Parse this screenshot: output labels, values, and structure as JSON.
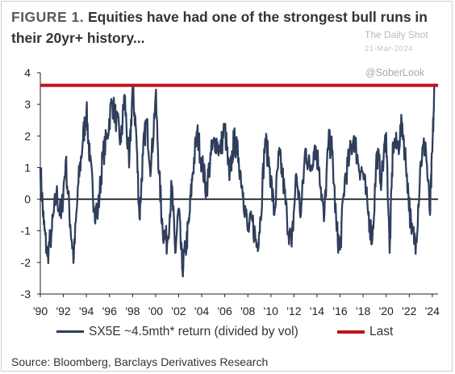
{
  "header": {
    "figure_label": "FIGURE 1.",
    "title": "Equities have had one of the strongest bull runs in their 20yr+ history..."
  },
  "watermarks": {
    "brand": "The Daily Shot",
    "date": "21-Mar-2024",
    "handle": "@SoberLook"
  },
  "source": "Source: Bloomberg, Barclays Derivatives Research",
  "colors": {
    "series": "#2f3e5c",
    "last": "#c0131b",
    "zero_line": "#000000"
  },
  "chart_data": {
    "type": "line",
    "title": "Equities have had one of the strongest bull runs in their 20yr+ history...",
    "xlabel": "",
    "ylabel": "",
    "ylim": [
      -3,
      4
    ],
    "xlim": [
      1990,
      2024.5
    ],
    "yticks": [
      -3,
      -2,
      -1,
      0,
      1,
      2,
      3,
      4
    ],
    "ytick_labels": [
      "-3",
      "-2",
      "-1",
      "0",
      "1",
      "2",
      "3",
      "4"
    ],
    "xticks": [
      1990,
      1992,
      1994,
      1996,
      1998,
      2000,
      2002,
      2004,
      2006,
      2008,
      2010,
      2012,
      2014,
      2016,
      2018,
      2020,
      2022,
      2024
    ],
    "xtick_labels": [
      "'90",
      "'92",
      "'94",
      "'96",
      "'98",
      "'00",
      "'02",
      "'04",
      "'06",
      "'08",
      "'10",
      "'12",
      "'14",
      "'16",
      "'18",
      "'20",
      "'22",
      "'24"
    ],
    "grid": false,
    "legend_position": "bottom",
    "series": [
      {
        "name": "SX5E ~4.5mth* return (divided by vol)",
        "style": "line",
        "x": [
          1990.0,
          1990.3,
          1990.6,
          1991.0,
          1991.4,
          1991.8,
          1992.2,
          1992.6,
          1992.9,
          1993.3,
          1993.7,
          1994.0,
          1994.3,
          1994.7,
          1995.0,
          1995.4,
          1995.8,
          1996.2,
          1996.6,
          1997.0,
          1997.3,
          1997.7,
          1998.0,
          1998.3,
          1998.6,
          1998.9,
          1999.2,
          1999.6,
          2000.0,
          2000.3,
          2000.6,
          2001.0,
          2001.4,
          2001.7,
          2002.0,
          2002.3,
          2002.6,
          2002.9,
          2003.2,
          2003.6,
          2004.0,
          2004.4,
          2004.8,
          2005.2,
          2005.6,
          2006.0,
          2006.4,
          2006.8,
          2007.2,
          2007.6,
          2008.0,
          2008.4,
          2008.8,
          2009.1,
          2009.5,
          2009.9,
          2010.3,
          2010.7,
          2011.0,
          2011.4,
          2011.8,
          2012.2,
          2012.6,
          2013.0,
          2013.4,
          2013.8,
          2014.2,
          2014.6,
          2015.0,
          2015.3,
          2015.7,
          2016.0,
          2016.4,
          2016.8,
          2017.2,
          2017.6,
          2018.0,
          2018.4,
          2018.8,
          2019.2,
          2019.6,
          2020.0,
          2020.3,
          2020.6,
          2021.0,
          2021.4,
          2021.8,
          2022.2,
          2022.6,
          2023.0,
          2023.4,
          2023.8,
          2024.0,
          2024.2
        ],
        "y": [
          1.0,
          -0.8,
          -1.8,
          -1.0,
          0.2,
          -0.6,
          1.2,
          -0.8,
          -1.9,
          0.5,
          1.9,
          2.8,
          1.2,
          -0.3,
          -0.4,
          1.3,
          2.0,
          3.1,
          2.5,
          1.8,
          3.3,
          1.0,
          3.5,
          2.2,
          -0.6,
          1.4,
          2.5,
          1.0,
          3.3,
          0.8,
          -0.9,
          -1.4,
          0.4,
          -1.7,
          -0.3,
          -2.2,
          -1.6,
          -0.7,
          0.8,
          2.1,
          1.2,
          0.3,
          1.4,
          1.9,
          1.5,
          2.3,
          0.6,
          1.9,
          1.3,
          0.2,
          -1.0,
          -0.7,
          -1.5,
          -0.6,
          1.9,
          1.0,
          -0.5,
          1.4,
          0.8,
          -0.6,
          -1.5,
          0.8,
          -0.5,
          1.6,
          0.9,
          1.7,
          1.0,
          -0.7,
          1.8,
          1.6,
          -1.0,
          -1.6,
          0.6,
          1.3,
          2.0,
          1.1,
          0.8,
          -0.3,
          -1.3,
          1.5,
          0.6,
          2.1,
          -1.7,
          1.8,
          1.6,
          2.4,
          0.8,
          -1.1,
          -1.3,
          1.2,
          1.8,
          -0.5,
          1.5,
          3.6
        ]
      },
      {
        "name": "Last",
        "style": "horizontal_line",
        "value": 3.6
      }
    ]
  }
}
